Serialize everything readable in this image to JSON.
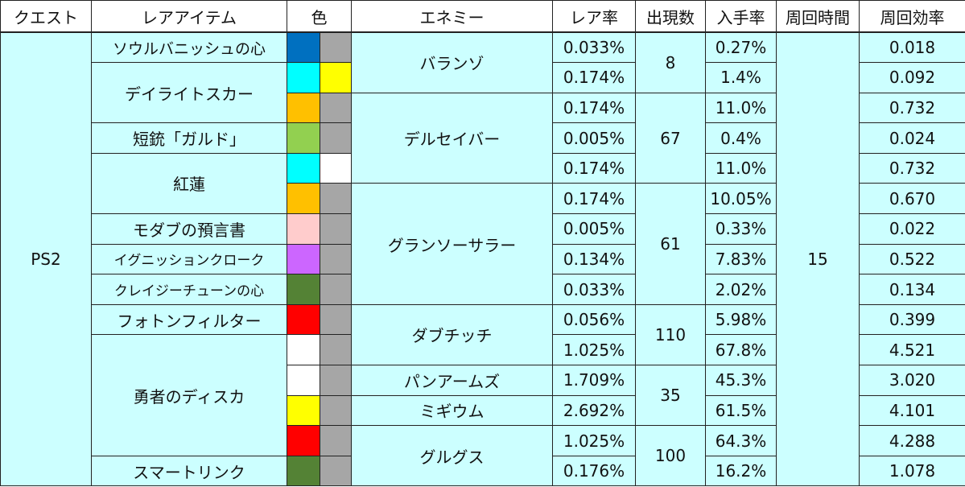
{
  "headers": [
    "クエスト",
    "レアアイテム",
    "色",
    "エネミー",
    "レア率",
    "出現数",
    "入手率",
    "周回時間",
    "周回効率"
  ],
  "quest": "PS2",
  "loop_time": "15",
  "colors": {
    "blue": "#0070c0",
    "cyan": "#00ffff",
    "yellow": "#ffff00",
    "gray": "#a6a6a6",
    "orange": "#ffc000",
    "light_green": "#92d050",
    "white": "#ffffff",
    "pink": "#ffcccc",
    "purple": "#cc66ff",
    "dark_green": "#548235",
    "red": "#ff0000",
    "cell_bg": "#ccffff"
  },
  "items": [
    "ソウルバニッシュの心",
    "デイライトスカー",
    "短銃「ガルド」",
    "紅蓮",
    "モダブの預言書",
    "イグニッションクローク",
    "クレイジーチューンの心",
    "フォトンフィルター",
    "勇者のディスカ",
    "スマートリンク"
  ],
  "enemies": [
    {
      "name": "バランゾ",
      "count": "8"
    },
    {
      "name": "デルセイバー",
      "count": "67"
    },
    {
      "name": "グランソーサラー",
      "count": "61"
    },
    {
      "name": "ダブチッチ",
      "count": "110"
    },
    {
      "name": "パンアームズ",
      "count": "35"
    },
    {
      "name": "ミギウム",
      "count": ""
    },
    {
      "name": "グルグス",
      "count": "100"
    }
  ],
  "rows": [
    {
      "c1": "blue",
      "c2": "gray",
      "rate": "0.033%",
      "get": "0.27%",
      "eff": "0.018"
    },
    {
      "c1": "cyan",
      "c2": "yellow",
      "rate": "0.174%",
      "get": "1.4%",
      "eff": "0.092"
    },
    {
      "c1": "orange",
      "c2": "gray",
      "rate": "0.174%",
      "get": "11.0%",
      "eff": "0.732"
    },
    {
      "c1": "light_green",
      "c2": "gray",
      "rate": "0.005%",
      "get": "0.4%",
      "eff": "0.024"
    },
    {
      "c1": "cyan",
      "c2": "white",
      "rate": "0.174%",
      "get": "11.0%",
      "eff": "0.732"
    },
    {
      "c1": "orange",
      "c2": "gray",
      "rate": "0.174%",
      "get": "10.05%",
      "eff": "0.670"
    },
    {
      "c1": "pink",
      "c2": "gray",
      "rate": "0.005%",
      "get": "0.33%",
      "eff": "0.022"
    },
    {
      "c1": "purple",
      "c2": "gray",
      "rate": "0.134%",
      "get": "7.83%",
      "eff": "0.522"
    },
    {
      "c1": "dark_green",
      "c2": "gray",
      "rate": "0.033%",
      "get": "2.02%",
      "eff": "0.134"
    },
    {
      "c1": "red",
      "c2": "gray",
      "rate": "0.056%",
      "get": "5.98%",
      "eff": "0.399"
    },
    {
      "c1": "white",
      "c2": "gray",
      "rate": "1.025%",
      "get": "67.8%",
      "eff": "4.521"
    },
    {
      "c1": "white",
      "c2": "gray",
      "rate": "1.709%",
      "get": "45.3%",
      "eff": "3.020"
    },
    {
      "c1": "yellow",
      "c2": "gray",
      "rate": "2.692%",
      "get": "61.5%",
      "eff": "4.101"
    },
    {
      "c1": "red",
      "c2": "gray",
      "rate": "1.025%",
      "get": "64.3%",
      "eff": "4.288"
    },
    {
      "c1": "dark_green",
      "c2": "gray",
      "rate": "0.176%",
      "get": "16.2%",
      "eff": "1.078"
    }
  ]
}
